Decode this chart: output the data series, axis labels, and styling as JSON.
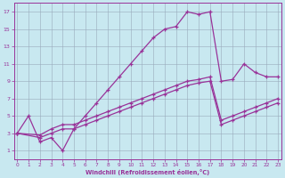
{
  "bg_color": "#c8e8f0",
  "line_color": "#993399",
  "grid_color": "#99aabb",
  "xlim": [
    -0.3,
    23.3
  ],
  "ylim": [
    0,
    18
  ],
  "xticks": [
    0,
    1,
    2,
    3,
    4,
    5,
    6,
    7,
    8,
    9,
    10,
    11,
    12,
    13,
    14,
    15,
    16,
    17,
    18,
    19,
    20,
    21,
    22,
    23
  ],
  "yticks": [
    1,
    3,
    5,
    7,
    9,
    11,
    13,
    15,
    17
  ],
  "xlabel": "Windchill (Refroidissement éolien,°C)",
  "lines": [
    {
      "x": [
        0,
        1,
        2,
        3,
        4,
        5,
        6,
        7,
        8,
        9,
        10,
        11,
        12,
        13,
        14,
        15,
        16,
        17,
        18,
        19,
        20,
        21,
        22,
        23
      ],
      "y": [
        3,
        5,
        2,
        2.5,
        1,
        3.5,
        5,
        6.5,
        8,
        9.5,
        11,
        12.5,
        14,
        15,
        15.3,
        17,
        16.7,
        17,
        9,
        9.2,
        11,
        10,
        9.5,
        9.5
      ]
    },
    {
      "x": [
        0,
        2,
        3,
        4,
        5,
        6,
        7,
        8,
        9,
        10,
        11,
        12,
        13,
        14,
        15,
        16,
        17,
        18,
        19,
        20,
        21,
        22,
        23
      ],
      "y": [
        3,
        2.5,
        3,
        3.5,
        3.5,
        4,
        4.5,
        5,
        5.5,
        6,
        6.5,
        7,
        7.5,
        8,
        8.5,
        8.8,
        9,
        4,
        4.5,
        5,
        5.5,
        6,
        6.5
      ]
    },
    {
      "x": [
        0,
        2,
        3,
        4,
        5,
        6,
        7,
        8,
        9,
        10,
        11,
        12,
        13,
        14,
        15,
        16,
        17,
        18,
        19,
        20,
        21,
        22,
        23
      ],
      "y": [
        3,
        2.8,
        3.5,
        4,
        4,
        4.5,
        5,
        5.5,
        6,
        6.5,
        7,
        7.5,
        8,
        8.5,
        9,
        9.2,
        9.5,
        4.5,
        5,
        5.5,
        6,
        6.5,
        7
      ]
    }
  ]
}
